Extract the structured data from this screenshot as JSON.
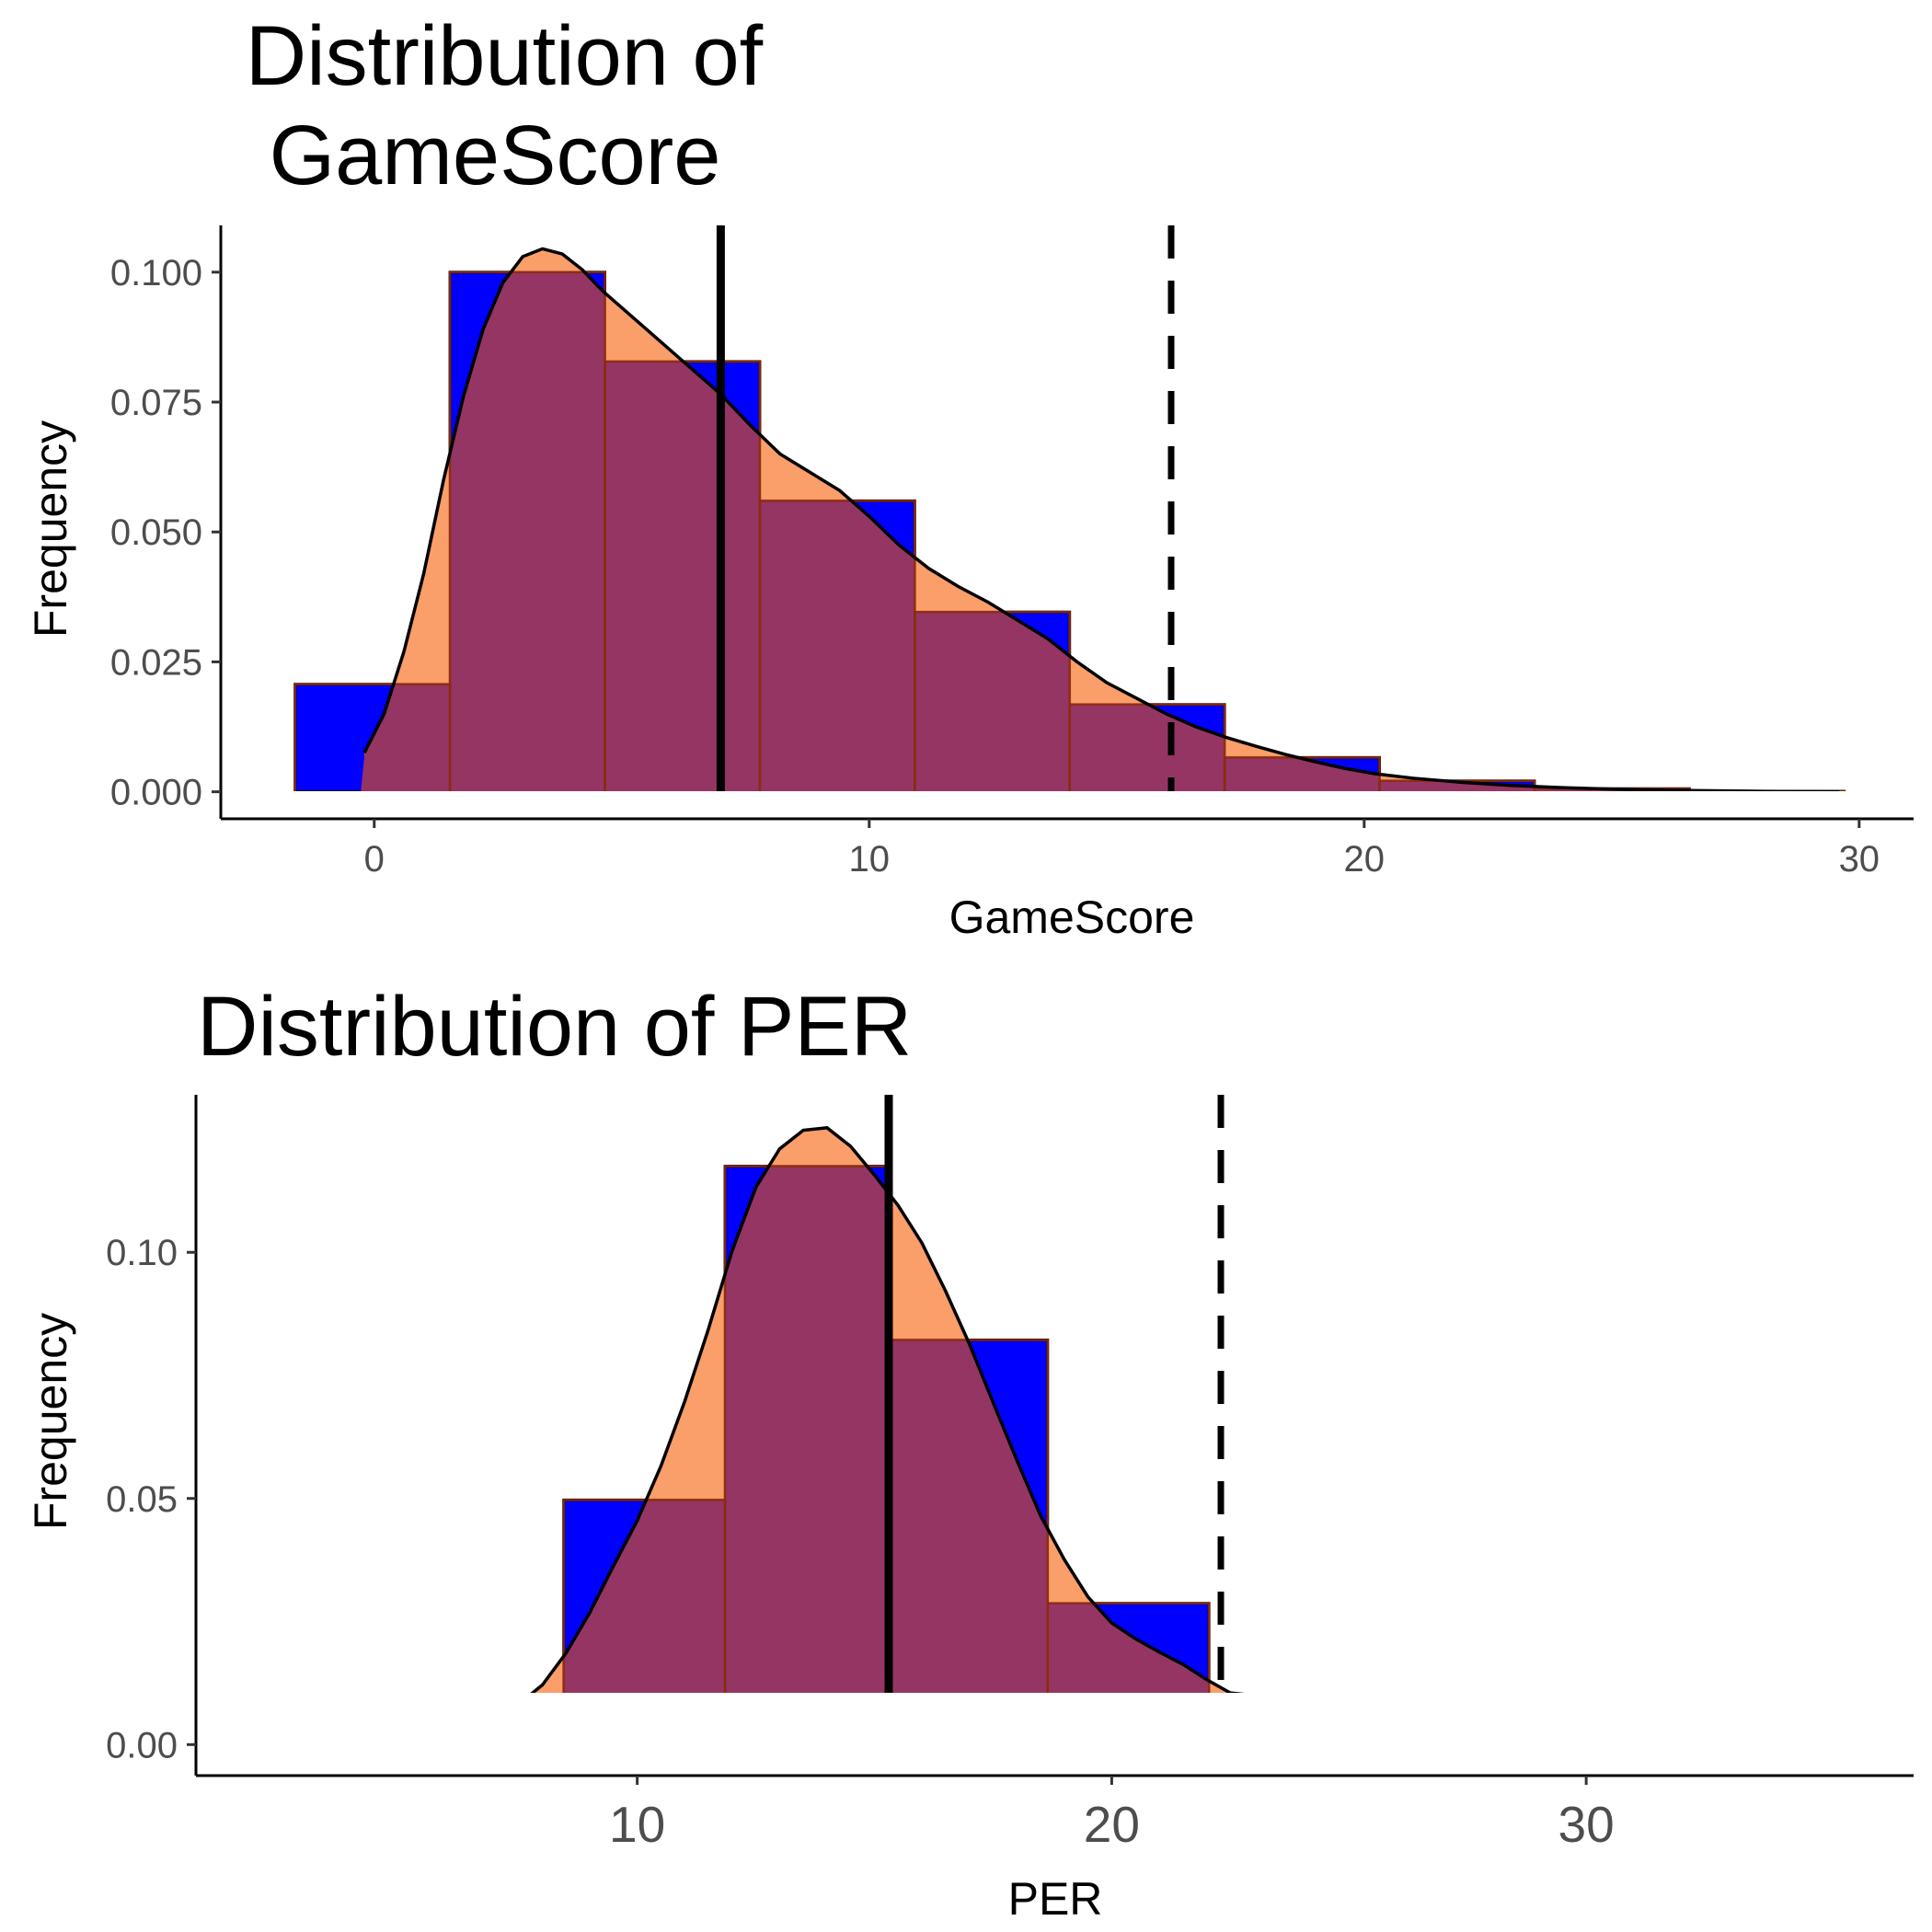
{
  "chart_data": [
    {
      "type": "bar",
      "title": [
        "Distribution of",
        "GameScore"
      ],
      "xlabel": "GameScore",
      "ylabel": "Frequency",
      "xlim": [
        -3.1,
        31.1
      ],
      "ylim": [
        -0.0052,
        0.109
      ],
      "x_ticks": [
        0,
        10,
        20,
        30
      ],
      "x_tick_labels": [
        "0",
        "10",
        "20",
        "30"
      ],
      "y_ticks": [
        0.0,
        0.025,
        0.05,
        0.075,
        0.1
      ],
      "y_tick_labels": [
        "0.000",
        "0.025",
        "0.050",
        "0.075",
        "0.100"
      ],
      "bin_edges": [
        -1.6,
        1.53,
        4.66,
        7.79,
        10.92,
        14.05,
        17.18,
        20.31,
        23.44,
        26.57,
        29.7
      ],
      "values": [
        0.0207,
        0.1,
        0.0828,
        0.056,
        0.0346,
        0.0168,
        0.0066,
        0.0021,
        0.0006,
        0.0001
      ],
      "density": {
        "x": [
          -0.2,
          0.2,
          0.6,
          1.0,
          1.4,
          1.8,
          2.2,
          2.6,
          3.0,
          3.4,
          3.8,
          4.2,
          4.6,
          5.2,
          5.8,
          6.4,
          7.0,
          7.6,
          8.2,
          8.8,
          9.4,
          10.0,
          10.6,
          11.2,
          11.8,
          12.4,
          13.0,
          13.6,
          14.2,
          14.8,
          15.4,
          16.0,
          16.6,
          17.2,
          17.8,
          18.4,
          19.0,
          19.6,
          20.2,
          21.0,
          22.0,
          23.0,
          24.0,
          25.0,
          26.0,
          27.0,
          28.0,
          29.6
        ],
        "y": [
          0.0075,
          0.015,
          0.027,
          0.042,
          0.06,
          0.076,
          0.089,
          0.098,
          0.103,
          0.1045,
          0.1035,
          0.1005,
          0.0965,
          0.0915,
          0.0865,
          0.0815,
          0.0765,
          0.0705,
          0.065,
          0.0615,
          0.058,
          0.053,
          0.0475,
          0.043,
          0.0395,
          0.0365,
          0.033,
          0.0295,
          0.025,
          0.021,
          0.018,
          0.015,
          0.0125,
          0.0105,
          0.0088,
          0.0072,
          0.0058,
          0.0045,
          0.0035,
          0.0026,
          0.0018,
          0.0012,
          0.0008,
          0.0005,
          0.0003,
          0.0002,
          0.0001,
          0.0
        ]
      },
      "mean_line": 7.0,
      "threshold_line": 16.1,
      "colors": {
        "histogram": "#0000ff",
        "overlay": "#f98d50",
        "overlap": "#953564",
        "outline": "#000000",
        "density_edge": "#8b2a0e"
      }
    },
    {
      "type": "bar",
      "title": [
        "Distribution of PER"
      ],
      "xlabel": "PER",
      "ylabel": "Frequency",
      "xlim": [
        0.7,
        36.9
      ],
      "ylim": [
        -0.0063,
        0.132
      ],
      "x_ticks": [
        10,
        20,
        30
      ],
      "x_tick_labels": [
        "10",
        "20",
        "30"
      ],
      "y_ticks": [
        0.0,
        0.05,
        0.1
      ],
      "y_tick_labels": [
        "0.00",
        "0.05",
        "0.10"
      ],
      "bin_edges": [
        5.05,
        8.45,
        11.85,
        15.25,
        18.65,
        22.05,
        25.45,
        28.85,
        32.25
      ],
      "values": [
        0.0044,
        0.0497,
        0.1175,
        0.0822,
        0.0287,
        0.0088,
        0.0031,
        0.0004
      ],
      "density": {
        "x": [
          2.4,
          4.0,
          5.0,
          6.0,
          7.0,
          7.5,
          8.0,
          8.5,
          9.0,
          9.5,
          10.0,
          10.5,
          11.0,
          11.5,
          12.0,
          12.5,
          13.0,
          13.5,
          14.0,
          14.5,
          15.0,
          15.5,
          16.0,
          16.5,
          17.0,
          17.5,
          18.0,
          18.5,
          19.0,
          19.5,
          20.0,
          20.5,
          21.0,
          21.5,
          22.0,
          22.5,
          23.0,
          24.0,
          25.0,
          26.0,
          27.0,
          28.0,
          29.0,
          30.0,
          31.0,
          32.0,
          33.0,
          34.0,
          35.6
        ],
        "y": [
          0.0,
          0.0002,
          0.0008,
          0.0023,
          0.0053,
          0.0082,
          0.0121,
          0.0186,
          0.0268,
          0.0363,
          0.0455,
          0.0566,
          0.0697,
          0.0844,
          0.1003,
          0.1132,
          0.121,
          0.1248,
          0.1253,
          0.1215,
          0.1157,
          0.1095,
          0.1019,
          0.0921,
          0.0814,
          0.0695,
          0.0578,
          0.0465,
          0.0376,
          0.03,
          0.0247,
          0.0215,
          0.0188,
          0.0163,
          0.0132,
          0.0105,
          0.01,
          0.0083,
          0.0059,
          0.0044,
          0.0034,
          0.0022,
          0.0012,
          0.0005,
          0.0003,
          0.0002,
          0.0,
          0.0001,
          0.0
        ]
      },
      "mean_line": 15.3,
      "threshold_line": 22.3,
      "colors": {
        "histogram": "#0000ff",
        "overlay": "#f98d50",
        "overlap": "#953564",
        "outline": "#000000",
        "density_edge": "#8b2a0e"
      }
    }
  ]
}
